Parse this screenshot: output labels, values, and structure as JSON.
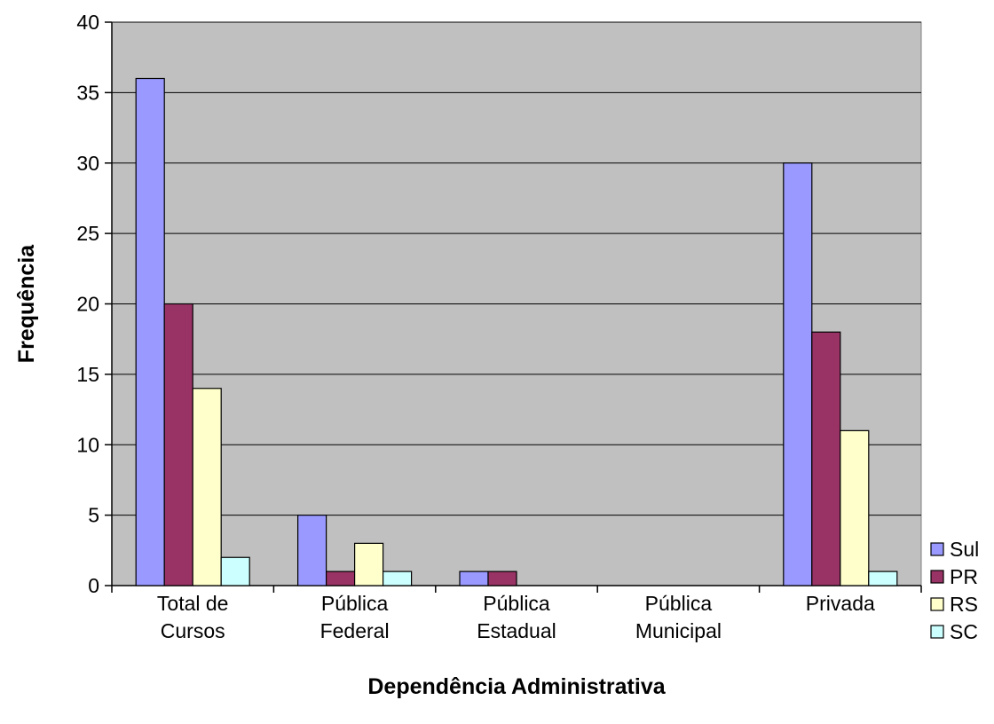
{
  "chart_data": {
    "type": "bar",
    "title": "",
    "xlabel": "Dependência Administrativa",
    "ylabel": "Frequência",
    "ylim": [
      0,
      40
    ],
    "yticks": [
      0,
      5,
      10,
      15,
      20,
      25,
      30,
      35,
      40
    ],
    "grid": true,
    "legend_position": "right",
    "categories": [
      [
        "Total de",
        "Cursos"
      ],
      [
        "Pública",
        "Federal"
      ],
      [
        "Pública",
        "Estadual"
      ],
      [
        "Pública",
        "Municipal"
      ],
      [
        "Privada"
      ]
    ],
    "series": [
      {
        "name": "Sul",
        "color": "#9999ff",
        "values": [
          36,
          5,
          1,
          0,
          30
        ]
      },
      {
        "name": "PR",
        "color": "#993366",
        "values": [
          20,
          1,
          1,
          0,
          18
        ]
      },
      {
        "name": "RS",
        "color": "#ffffcc",
        "values": [
          14,
          3,
          0,
          0,
          11
        ]
      },
      {
        "name": "SC",
        "color": "#ccffff",
        "values": [
          2,
          1,
          0,
          0,
          1
        ]
      }
    ],
    "plot_background": "#c0c0c0"
  }
}
